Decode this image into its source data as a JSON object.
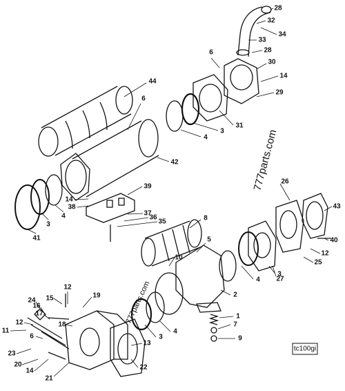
{
  "callouts": [
    "28",
    "32",
    "34",
    "33",
    "28",
    "6",
    "30",
    "14",
    "29",
    "44",
    "6",
    "31",
    "3",
    "4",
    "42",
    "39",
    "14",
    "38",
    "37",
    "36",
    "35",
    "41",
    "3",
    "4",
    "26",
    "43",
    "8",
    "5",
    "40",
    "12",
    "10",
    "25",
    "3",
    "27",
    "4",
    "2",
    "1",
    "7",
    "9",
    "12",
    "15",
    "19",
    "24",
    "16",
    "17",
    "12",
    "18",
    "11",
    "6",
    "13",
    "3",
    "4",
    "23",
    "20",
    "14",
    "21",
    "22"
  ],
  "watermarks": [
    "777parts.com",
    "777parts.com"
  ],
  "drawing_id": "tc100gi"
}
